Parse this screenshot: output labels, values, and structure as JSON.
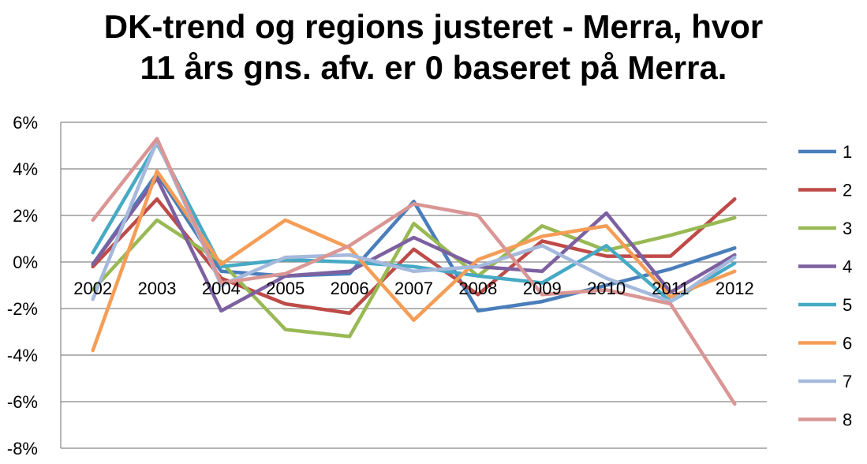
{
  "chart_data": {
    "type": "line",
    "title_lines": [
      "DK-trend og regions justeret - Merra, hvor",
      "11 års gns. afv. er 0 baseret på Merra."
    ],
    "categories": [
      "2002",
      "2003",
      "2004",
      "2005",
      "2006",
      "2007",
      "2008",
      "2009",
      "2010",
      "2011",
      "2012"
    ],
    "ylim": [
      -0.08,
      0.06
    ],
    "y_ticks": [
      0.06,
      0.04,
      0.02,
      0.0,
      -0.02,
      -0.04,
      -0.06,
      -0.08
    ],
    "y_tick_labels": [
      "6%",
      "4%",
      "2%",
      "0%",
      "-2%",
      "-4%",
      "-6%",
      "-8%"
    ],
    "grid": true,
    "legend_position": "right",
    "series": [
      {
        "name": "1",
        "color": "#4A7EBB",
        "values": [
          -0.001,
          0.038,
          -0.004,
          -0.006,
          -0.005,
          0.026,
          -0.021,
          -0.017,
          -0.01,
          -0.003,
          0.006
        ]
      },
      {
        "name": "2",
        "color": "#BE4B48",
        "values": [
          -0.002,
          0.027,
          -0.007,
          -0.018,
          -0.022,
          0.0055,
          -0.014,
          0.009,
          0.0025,
          0.0025,
          0.027
        ]
      },
      {
        "name": "3",
        "color": "#98B954",
        "values": [
          -0.012,
          0.018,
          0.0,
          -0.029,
          -0.032,
          0.0165,
          -0.006,
          0.0155,
          0.005,
          0.0115,
          0.019
        ]
      },
      {
        "name": "4",
        "color": "#7D60A0",
        "values": [
          -0.001,
          0.036,
          -0.021,
          -0.006,
          -0.004,
          0.0105,
          -0.002,
          -0.004,
          0.021,
          -0.013,
          0.003
        ]
      },
      {
        "name": "5",
        "color": "#46AAC5",
        "values": [
          0.004,
          0.051,
          -0.002,
          0.001,
          0.0,
          -0.002,
          -0.006,
          -0.009,
          0.007,
          -0.017,
          -0.0005
        ]
      },
      {
        "name": "6",
        "color": "#F59D56",
        "values": [
          -0.038,
          0.039,
          -0.001,
          0.018,
          0.006,
          -0.025,
          0.001,
          0.011,
          0.0155,
          -0.015,
          -0.004
        ]
      },
      {
        "name": "7",
        "color": "#A5B9DC",
        "values": [
          -0.016,
          0.052,
          -0.01,
          0.002,
          0.003,
          -0.004,
          -0.002,
          0.007,
          -0.007,
          -0.017,
          0.002
        ]
      },
      {
        "name": "8",
        "color": "#D99694",
        "values": [
          0.018,
          0.053,
          -0.009,
          -0.005,
          0.007,
          0.025,
          0.02,
          -0.014,
          -0.012,
          -0.018,
          -0.061
        ]
      }
    ]
  }
}
